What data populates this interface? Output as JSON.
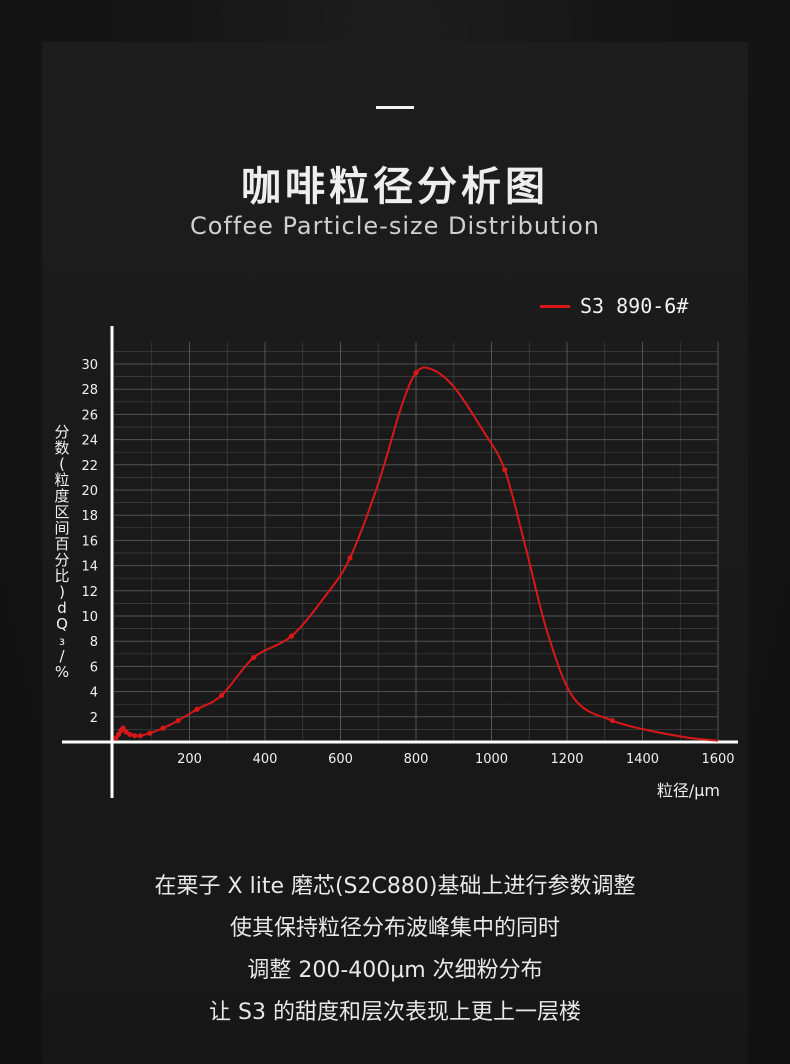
{
  "header": {
    "title": "咖啡粒径分析图",
    "subtitle": "Coffee Particle-size Distribution"
  },
  "colors": {
    "series": "#d81818",
    "axis": "#ffffff",
    "grid": "#5a5a5a"
  },
  "chart_data": {
    "type": "line",
    "title": "咖啡粒径分析图",
    "subtitle": "Coffee Particle-size Distribution",
    "xlabel": "粒径/μm",
    "ylabel": "分数(粒度区间百分比)dQ₃/%",
    "xlim": [
      0,
      1600
    ],
    "ylim": [
      0,
      30
    ],
    "x_ticks": [
      "200",
      "400",
      "600",
      "800",
      "1000",
      "1200",
      "1400",
      "1600"
    ],
    "y_ticks": [
      "2",
      "4",
      "6",
      "8",
      "10",
      "12",
      "14",
      "16",
      "18",
      "20",
      "22",
      "24",
      "26",
      "28",
      "30"
    ],
    "grid": true,
    "legend_position": "top-right",
    "series": [
      {
        "name": "S3 890-6#",
        "color": "#d81818",
        "points": [
          [
            5,
            0.3
          ],
          [
            12,
            0.6
          ],
          [
            18,
            0.9
          ],
          [
            24,
            1.1
          ],
          [
            32,
            0.8
          ],
          [
            42,
            0.6
          ],
          [
            55,
            0.5
          ],
          [
            70,
            0.5
          ],
          [
            95,
            0.7
          ],
          [
            130,
            1.1
          ],
          [
            170,
            1.7
          ],
          [
            220,
            2.6
          ],
          [
            285,
            3.7
          ],
          [
            370,
            6.7
          ],
          [
            470,
            8.4
          ],
          [
            560,
            11.6
          ],
          [
            625,
            14.6
          ],
          [
            700,
            20.5
          ],
          [
            760,
            26.5
          ],
          [
            800,
            29.3
          ],
          [
            840,
            29.6
          ],
          [
            900,
            28.2
          ],
          [
            980,
            24.6
          ],
          [
            1035,
            21.6
          ],
          [
            1090,
            15.5
          ],
          [
            1150,
            8.5
          ],
          [
            1220,
            3.4
          ],
          [
            1320,
            1.7
          ],
          [
            1420,
            0.9
          ],
          [
            1520,
            0.35
          ],
          [
            1600,
            0.1
          ]
        ],
        "markers": [
          [
            5,
            0.3
          ],
          [
            12,
            0.6
          ],
          [
            18,
            0.9
          ],
          [
            24,
            1.1
          ],
          [
            32,
            0.8
          ],
          [
            42,
            0.6
          ],
          [
            55,
            0.5
          ],
          [
            70,
            0.5
          ],
          [
            95,
            0.7
          ],
          [
            130,
            1.1
          ],
          [
            170,
            1.7
          ],
          [
            220,
            2.6
          ],
          [
            285,
            3.7
          ],
          [
            370,
            6.7
          ],
          [
            470,
            8.4
          ],
          [
            625,
            14.6
          ],
          [
            800,
            29.3
          ],
          [
            1035,
            21.6
          ],
          [
            1320,
            1.7
          ]
        ]
      }
    ]
  },
  "legend": {
    "label": "S3 890-6#"
  },
  "body": {
    "lines": [
      "在栗子 X lite 磨芯(S2C880)基础上进行参数调整",
      "使其保持粒径分布波峰集中的同时",
      "调整 200-400μm 次细粉分布",
      "让 S3 的甜度和层次表现上更上一层楼"
    ]
  }
}
